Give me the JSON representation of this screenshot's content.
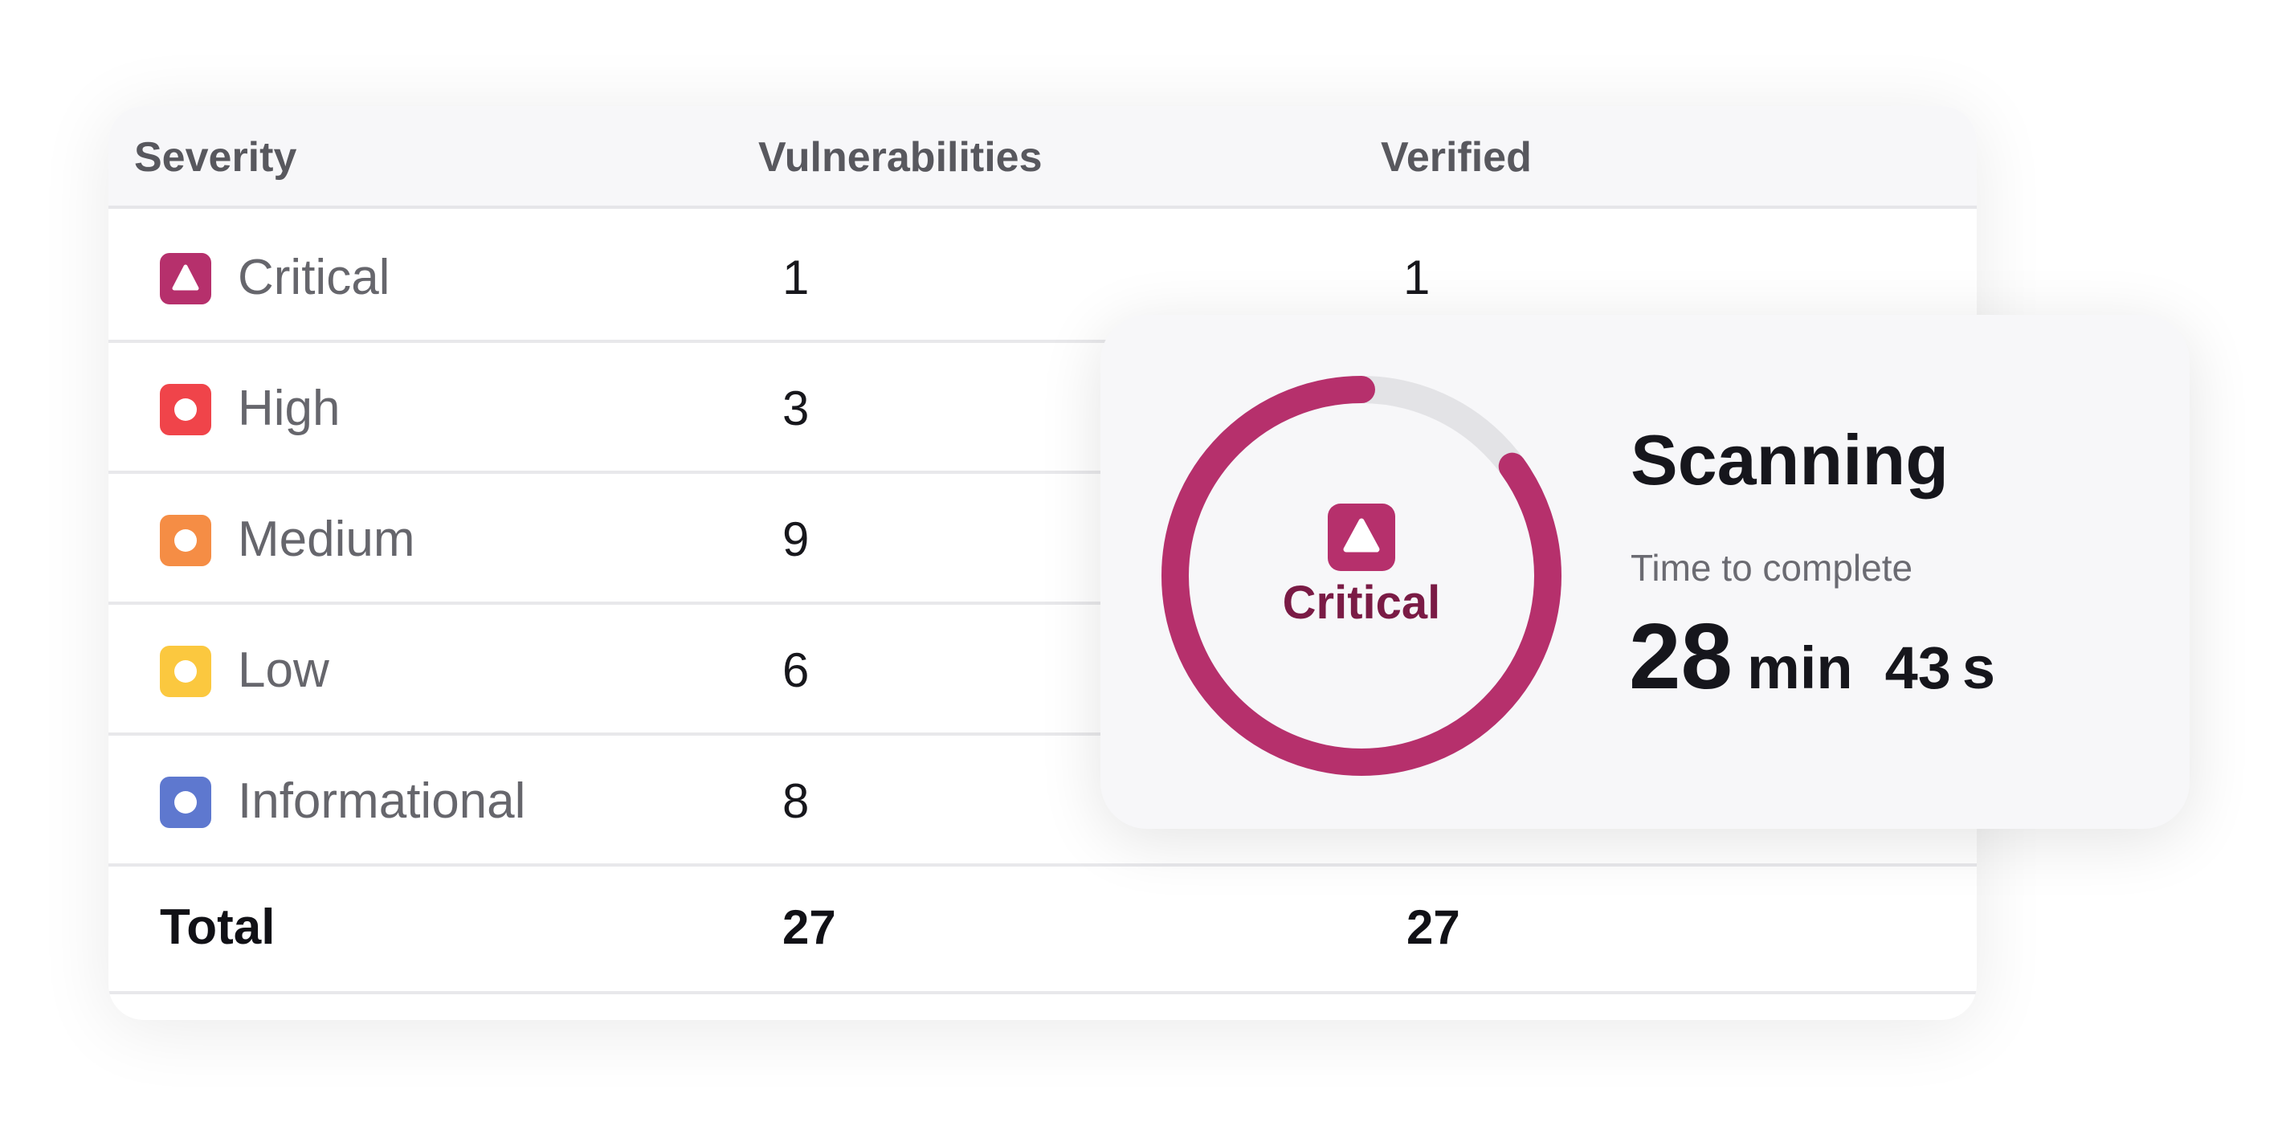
{
  "table": {
    "headers": {
      "severity": "Severity",
      "vulnerabilities": "Vulnerabilities",
      "verified": "Verified"
    },
    "rows": [
      {
        "label": "Critical",
        "vulnerabilities": "1",
        "verified": "1",
        "color": "#b6306c",
        "icon": "triangle-icon"
      },
      {
        "label": "High",
        "vulnerabilities": "3",
        "verified": "",
        "color": "#f0444a",
        "icon": "circle-icon"
      },
      {
        "label": "Medium",
        "vulnerabilities": "9",
        "verified": "",
        "color": "#f58d45",
        "icon": "circle-icon"
      },
      {
        "label": "Low",
        "vulnerabilities": "6",
        "verified": "",
        "color": "#fbc83f",
        "icon": "circle-icon"
      },
      {
        "label": "Informational",
        "vulnerabilities": "8",
        "verified": "",
        "color": "#5e78cf",
        "icon": "circle-icon"
      }
    ],
    "total": {
      "label": "Total",
      "vulnerabilities": "27",
      "verified": "27"
    }
  },
  "scan": {
    "severity_label": "Critical",
    "title": "Scanning",
    "subtitle": "Time to complete",
    "time": {
      "minutes": "28",
      "minutes_unit": "min",
      "seconds": "43",
      "seconds_unit": "s"
    },
    "progress_fraction": 0.85,
    "colors": {
      "progress": "#b6306c",
      "track": "#e3e3e6",
      "label": "#7a1b45"
    }
  }
}
